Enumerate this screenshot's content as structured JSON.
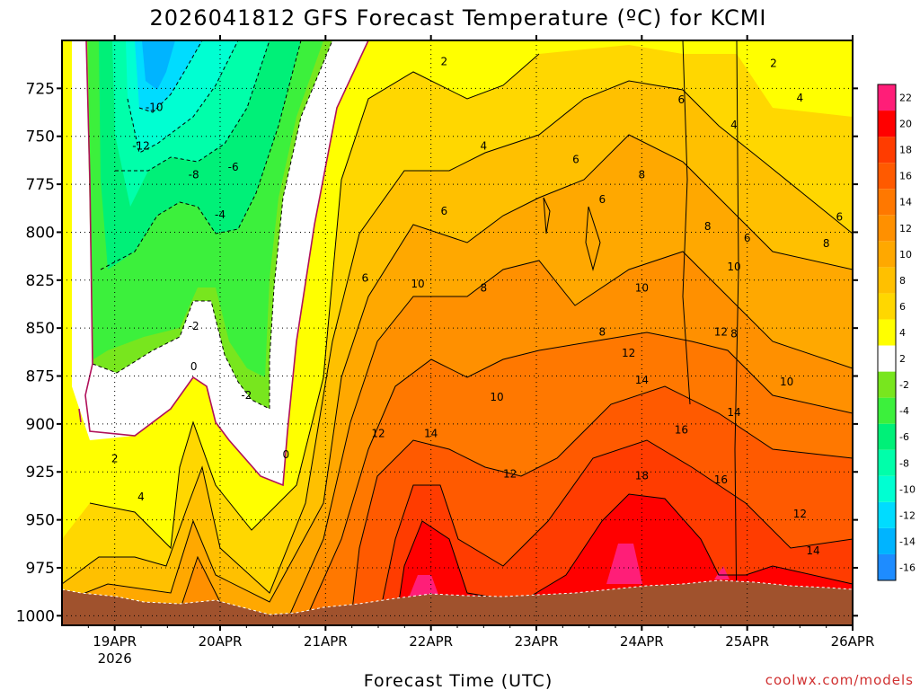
{
  "chart_data": {
    "type": "heatmap",
    "title": "2026041812 GFS Forecast Temperature (ºC) for KCMI",
    "xlabel": "Forecast Time (UTC)",
    "credit": "coolwx.com/models",
    "y_axis": {
      "quantity": "pressure (hPa)",
      "range": [
        1005,
        700
      ],
      "ticks": [
        725,
        750,
        775,
        800,
        825,
        850,
        875,
        900,
        925,
        950,
        975,
        1000
      ]
    },
    "x_axis": {
      "range": [
        "2026-04-18T12:00Z",
        "2026-04-26T00:00Z"
      ],
      "ticks": [
        {
          "label": "19APR",
          "sublabel": "2026",
          "day": 19
        },
        {
          "label": "20APR",
          "sublabel": "",
          "day": 20
        },
        {
          "label": "21APR",
          "sublabel": "",
          "day": 21
        },
        {
          "label": "22APR",
          "sublabel": "",
          "day": 22
        },
        {
          "label": "23APR",
          "sublabel": "",
          "day": 23
        },
        {
          "label": "24APR",
          "sublabel": "",
          "day": 24
        },
        {
          "label": "25APR",
          "sublabel": "",
          "day": 25
        },
        {
          "label": "26APR",
          "sublabel": "",
          "day": 26
        }
      ]
    },
    "grid": true,
    "colorbar": {
      "placement": "right",
      "levels": [
        -16,
        -14,
        -12,
        -10,
        -8,
        -6,
        -4,
        -2,
        2,
        4,
        6,
        8,
        10,
        12,
        14,
        16,
        18,
        20,
        22
      ],
      "colors": [
        "#1e8cff",
        "#00b4ff",
        "#00dcff",
        "#00ffd2",
        "#00ffaa",
        "#00f078",
        "#3cf03c",
        "#78e61e",
        "#ffffff",
        "#ffff00",
        "#ffd700",
        "#ffc000",
        "#ffa800",
        "#ff9000",
        "#ff7800",
        "#ff5a00",
        "#ff3c00",
        "#ff0000",
        "#ff1e78"
      ]
    },
    "contour_labels": [
      {
        "time": "2026-04-19T09:00Z",
        "pressure": 735,
        "value": "-10"
      },
      {
        "time": "2026-04-19T06:00Z",
        "pressure": 755,
        "value": "-12"
      },
      {
        "time": "2026-04-19T18:00Z",
        "pressure": 770,
        "value": "-8"
      },
      {
        "time": "2026-04-20T03:00Z",
        "pressure": 766,
        "value": "-6"
      },
      {
        "time": "2026-04-20T00:00Z",
        "pressure": 791,
        "value": "-4"
      },
      {
        "time": "2026-04-19T18:00Z",
        "pressure": 849,
        "value": "-2"
      },
      {
        "time": "2026-04-20T06:00Z",
        "pressure": 885,
        "value": "-2"
      },
      {
        "time": "2026-04-19T18:00Z",
        "pressure": 870,
        "value": "0"
      },
      {
        "time": "2026-04-20T15:00Z",
        "pressure": 916,
        "value": "0"
      },
      {
        "time": "2026-04-19T00:00Z",
        "pressure": 918,
        "value": "2"
      },
      {
        "time": "2026-04-19T06:00Z",
        "pressure": 938,
        "value": "4"
      },
      {
        "time": "2026-04-22T03:00Z",
        "pressure": 711,
        "value": "2"
      },
      {
        "time": "2026-04-22T12:00Z",
        "pressure": 755,
        "value": "4"
      },
      {
        "time": "2026-04-23T09:00Z",
        "pressure": 762,
        "value": "6"
      },
      {
        "time": "2026-04-22T03:00Z",
        "pressure": 789,
        "value": "6"
      },
      {
        "time": "2026-04-23T15:00Z",
        "pressure": 783,
        "value": "6"
      },
      {
        "time": "2026-04-24T00:00Z",
        "pressure": 770,
        "value": "8"
      },
      {
        "time": "2026-04-24T09:00Z",
        "pressure": 731,
        "value": "6"
      },
      {
        "time": "2026-04-24T21:00Z",
        "pressure": 744,
        "value": "4"
      },
      {
        "time": "2026-04-25T06:00Z",
        "pressure": 712,
        "value": "2"
      },
      {
        "time": "2026-04-25T12:00Z",
        "pressure": 730,
        "value": "4"
      },
      {
        "time": "2026-04-24T15:00Z",
        "pressure": 797,
        "value": "8"
      },
      {
        "time": "2026-04-25T00:00Z",
        "pressure": 803,
        "value": "6"
      },
      {
        "time": "2026-04-25T21:00Z",
        "pressure": 792,
        "value": "6"
      },
      {
        "time": "2026-04-25T18:00Z",
        "pressure": 806,
        "value": "8"
      },
      {
        "time": "2026-04-21T09:00Z",
        "pressure": 824,
        "value": "6"
      },
      {
        "time": "2026-04-21T21:00Z",
        "pressure": 827,
        "value": "10"
      },
      {
        "time": "2026-04-22T12:00Z",
        "pressure": 829,
        "value": "8"
      },
      {
        "time": "2026-04-24T00:00Z",
        "pressure": 829,
        "value": "10"
      },
      {
        "time": "2026-04-24T21:00Z",
        "pressure": 818,
        "value": "10"
      },
      {
        "time": "2026-04-23T15:00Z",
        "pressure": 852,
        "value": "8"
      },
      {
        "time": "2026-04-24T21:00Z",
        "pressure": 853,
        "value": "8"
      },
      {
        "time": "2026-04-23T21:00Z",
        "pressure": 863,
        "value": "12"
      },
      {
        "time": "2026-04-24T18:00Z",
        "pressure": 852,
        "value": "12"
      },
      {
        "time": "2026-04-24T00:00Z",
        "pressure": 877,
        "value": "14"
      },
      {
        "time": "2026-04-25T09:00Z",
        "pressure": 878,
        "value": "10"
      },
      {
        "time": "2026-04-22T15:00Z",
        "pressure": 886,
        "value": "10"
      },
      {
        "time": "2026-04-21T12:00Z",
        "pressure": 905,
        "value": "12"
      },
      {
        "time": "2026-04-22T00:00Z",
        "pressure": 905,
        "value": "14"
      },
      {
        "time": "2026-04-24T09:00Z",
        "pressure": 903,
        "value": "16"
      },
      {
        "time": "2026-04-24T21:00Z",
        "pressure": 894,
        "value": "14"
      },
      {
        "time": "2026-04-22T18:00Z",
        "pressure": 926,
        "value": "12"
      },
      {
        "time": "2026-04-24T00:00Z",
        "pressure": 927,
        "value": "18"
      },
      {
        "time": "2026-04-24T18:00Z",
        "pressure": 929,
        "value": "16"
      },
      {
        "time": "2026-04-25T12:00Z",
        "pressure": 947,
        "value": "12"
      },
      {
        "time": "2026-04-25T15:00Z",
        "pressure": 966,
        "value": "14"
      }
    ]
  }
}
